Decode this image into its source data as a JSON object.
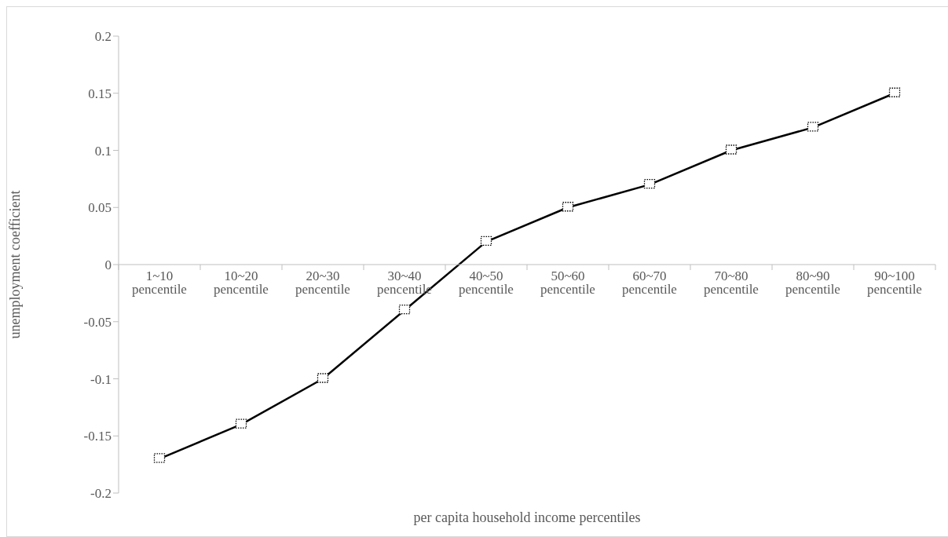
{
  "chart_data": {
    "type": "line",
    "xlabel": "per capita household income percentiles",
    "ylabel": "unemployment coefficient",
    "categories": [
      "1~10 pencentile",
      "10~20 pencentile",
      "20~30 pencentile",
      "30~40 pencentile",
      "40~50 pencentile",
      "50~60 pencentile",
      "60~70 pencentile",
      "70~80 pencentile",
      "80~90 pencentile",
      "90~100 pencentile"
    ],
    "series": [
      {
        "color": "#000000",
        "values": [
          -0.17,
          -0.14,
          -0.1,
          -0.04,
          0.02,
          0.05,
          0.07,
          0.1,
          0.12,
          0.15
        ]
      }
    ],
    "ylim": [
      -0.2,
      0.2
    ],
    "yticks": [
      -0.2,
      -0.15,
      -0.1,
      -0.05,
      0,
      0.05,
      0.1,
      0.15,
      0.2
    ],
    "grid": false,
    "legend": false,
    "marker": "square",
    "line_style": "solid"
  }
}
